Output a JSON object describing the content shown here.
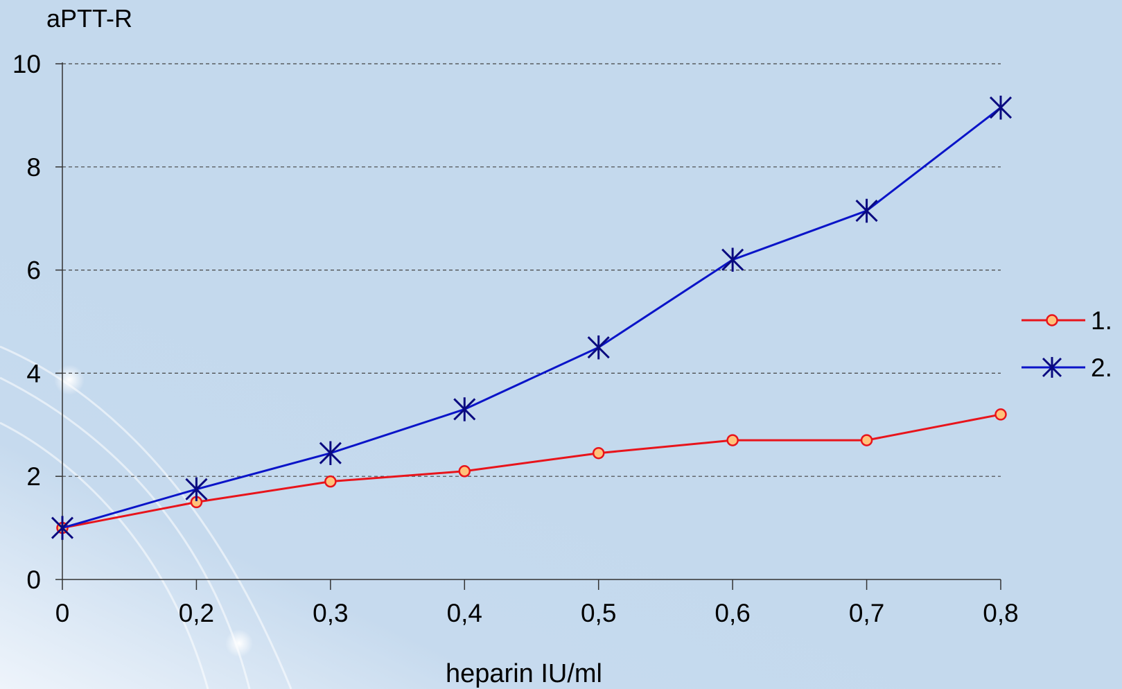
{
  "chart_data": {
    "type": "line",
    "title": "",
    "ylabel": "aPTT-R",
    "xlabel": "heparin IU/ml",
    "x_categories": [
      "0",
      "0,2",
      "0,3",
      "0,4",
      "0,5",
      "0,6",
      "0,7",
      "0,8"
    ],
    "y_ticks": [
      "0",
      "2",
      "4",
      "6",
      "8",
      "10"
    ],
    "ylim": [
      0,
      10
    ],
    "grid": "horizontal dashed",
    "legend_position": "right",
    "series": [
      {
        "name": "1.",
        "marker": "circle",
        "color": "#e8141b",
        "marker_fill": "#ffc27a",
        "values": [
          1.0,
          1.5,
          1.9,
          2.1,
          2.45,
          2.7,
          2.7,
          3.2
        ]
      },
      {
        "name": "2.",
        "marker": "asterisk",
        "color": "#0a14c8",
        "marker_color": "#0a0a80",
        "values": [
          1.0,
          1.75,
          2.45,
          3.3,
          4.5,
          6.2,
          7.15,
          9.15
        ]
      }
    ]
  }
}
